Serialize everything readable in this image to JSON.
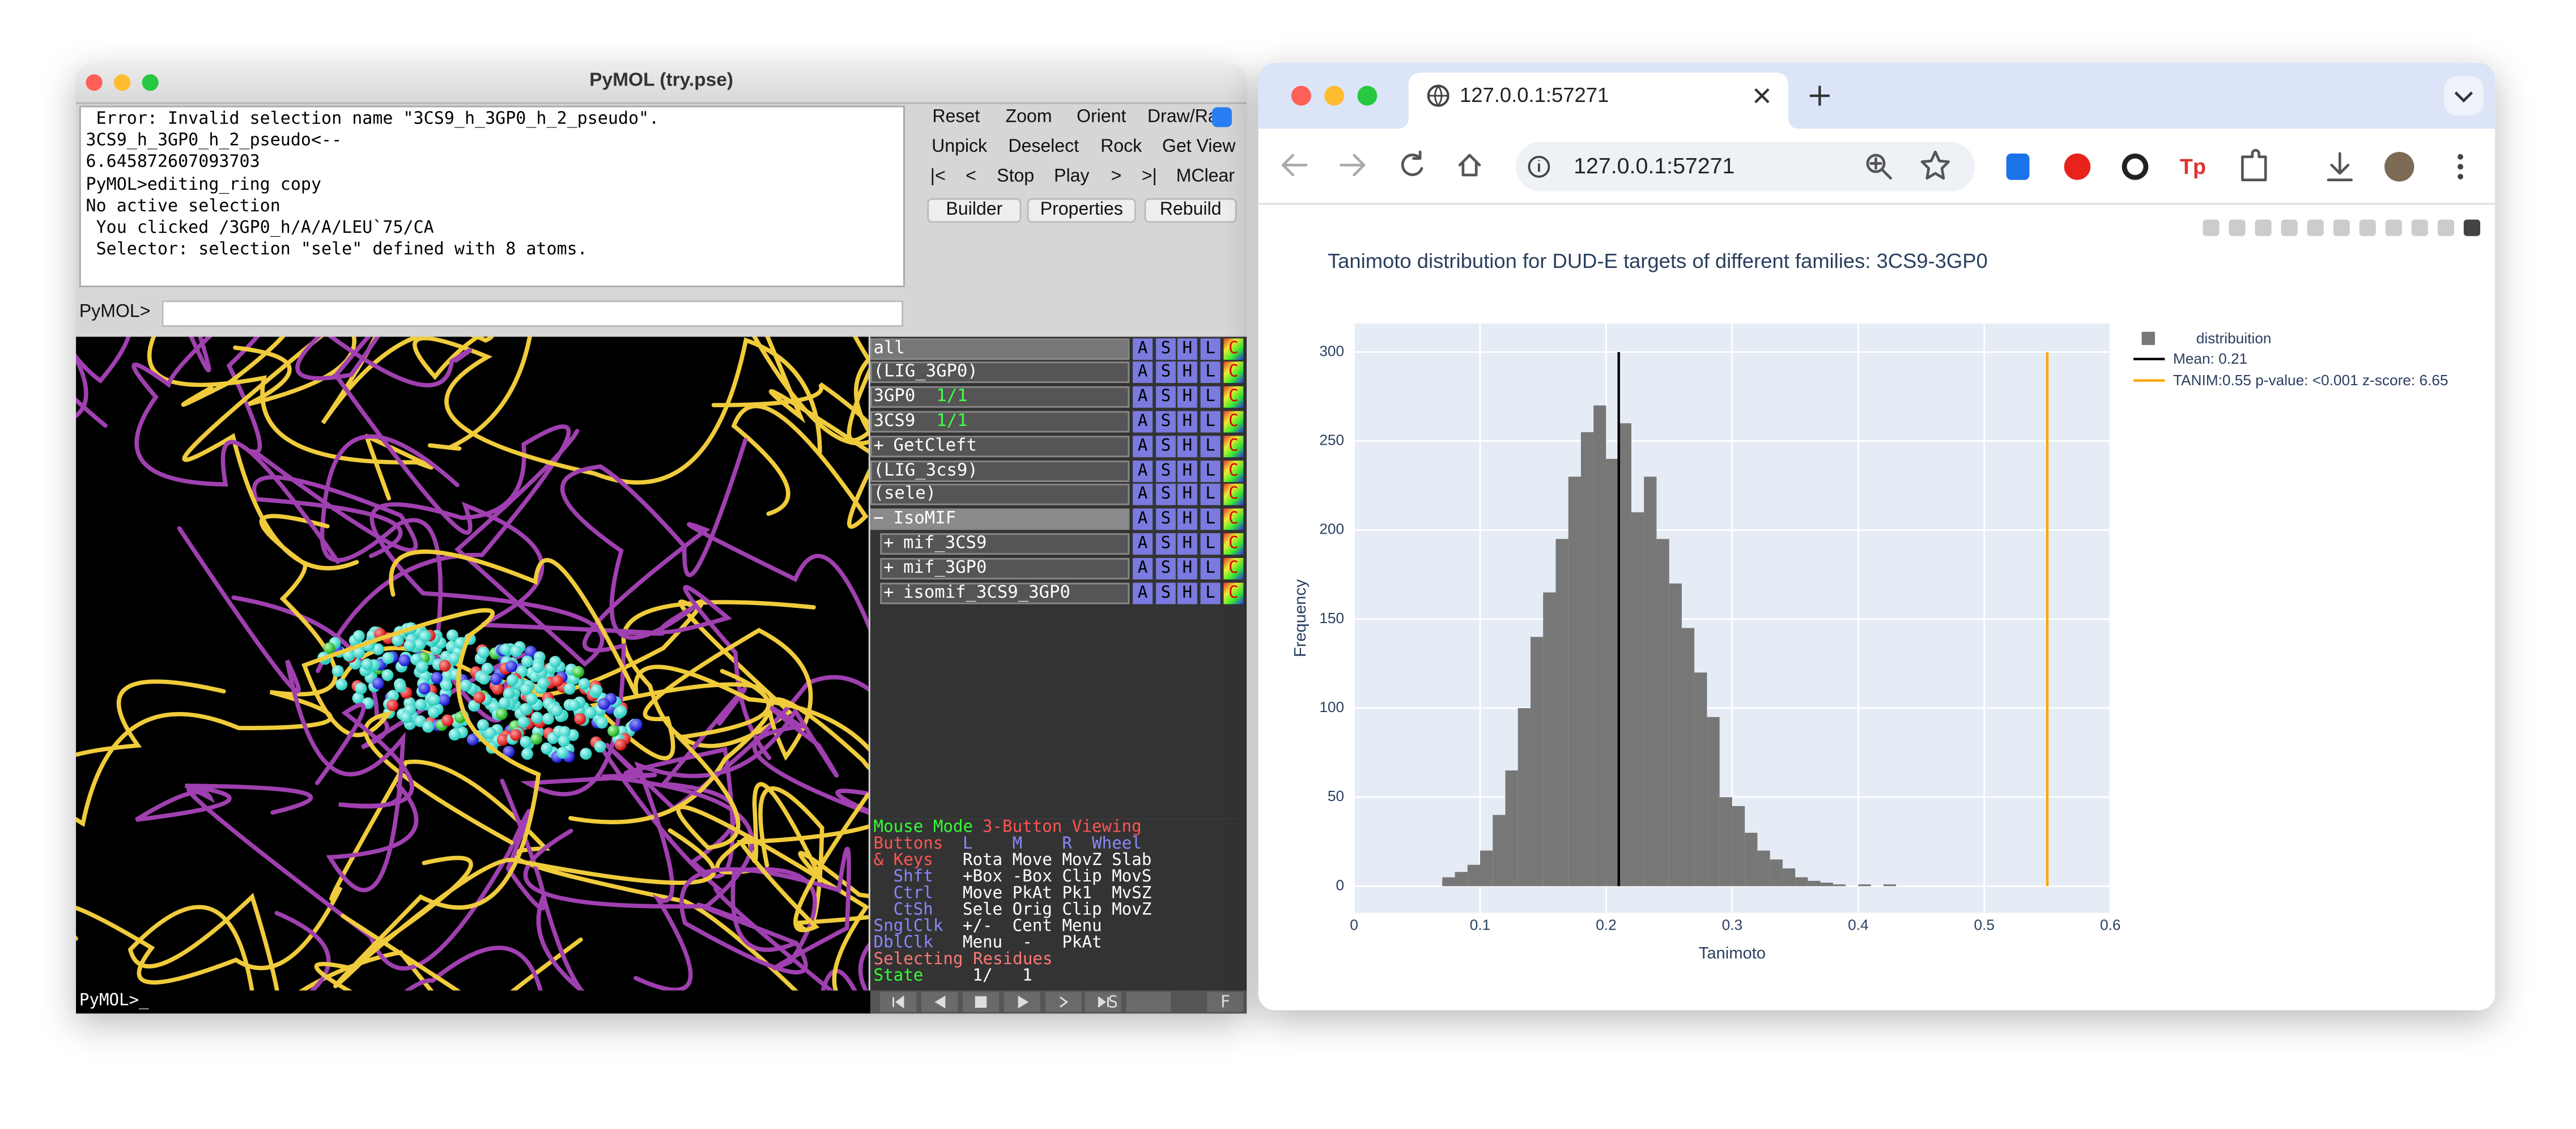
{
  "pymol": {
    "title": "PyMOL (try.pse)",
    "output": [
      " Error: Invalid selection name \"3CS9_h_3GP0_h_2_pseudo\".",
      "3CS9_h_3GP0_h_2_pseudo<--",
      "6.645872607093703",
      "PyMOL>editing_ring copy",
      "No active selection",
      " You clicked /3GP0_h/A/A/LEU`75/CA",
      " Selector: selection \"sele\" defined with 8 atoms."
    ],
    "buttons": [
      [
        "Reset",
        "Zoom",
        "Orient",
        "Draw/Ray"
      ],
      [
        "Unpick",
        "Deselect",
        "Rock",
        "Get View"
      ],
      [
        "|<",
        "<",
        "Stop",
        "Play",
        ">",
        ">|",
        "MClear"
      ],
      [
        "Builder",
        "Properties",
        "Rebuild"
      ]
    ],
    "prompt": "PyMOL>",
    "object_buttons": [
      "A",
      "S",
      "H",
      "L",
      "C"
    ],
    "objects": [
      {
        "name": "all"
      },
      {
        "name": "(LIG_3GP0)"
      },
      {
        "name": "3GP0",
        "state": "1/1"
      },
      {
        "name": "3CS9",
        "state": "1/1"
      },
      {
        "expander": "+",
        "name": "GetCleft"
      },
      {
        "name": "(LIG_3cs9)"
      },
      {
        "name": "(sele)"
      },
      {
        "expander": "−",
        "name": "IsoMIF",
        "children": [
          {
            "expander": "+",
            "name": "mif_3CS9"
          },
          {
            "expander": "+",
            "name": "mif_3GP0"
          },
          {
            "expander": "+",
            "name": "isomif_3CS9_3GP0"
          }
        ]
      }
    ],
    "mouse_mode": {
      "title": [
        "Mouse Mode",
        "3-Button Viewing"
      ],
      "rows": [
        [
          "Buttons",
          "L    M    R  Wheel"
        ],
        [
          "& Keys",
          "Rota Move MovZ Slab"
        ],
        [
          "Shft",
          "+Box -Box Clip MovS"
        ],
        [
          "Ctrl",
          "Move PkAt Pk1  MvSZ"
        ],
        [
          "CtSh",
          "Sele Orig Clip MovZ"
        ],
        [
          "SnglClk",
          "+/-  Cent Menu"
        ],
        [
          "DblClk",
          "Menu  -   PkAt"
        ]
      ],
      "selecting": "Selecting Residues",
      "state": [
        "State",
        "1/   1"
      ]
    },
    "bottom_prompt": "PyMOL>_",
    "playback_labels": [
      "S",
      "F"
    ]
  },
  "browser": {
    "tab": "127.0.0.1:57271",
    "url": "127.0.0.1:57271",
    "extension_label": "Tp",
    "chart_data": {
      "type": "histogram",
      "title": "Tanimoto distribution for DUD-E targets of different families: 3CS9-3GP0",
      "x_label": "Tanimoto",
      "y_label": "Frequency",
      "name": "distribuition",
      "color": "#777777",
      "bins": [
        0.07,
        0.08,
        0.09,
        0.1,
        0.11,
        0.12,
        0.13,
        0.14,
        0.15,
        0.16,
        0.17,
        0.18,
        0.19,
        0.2,
        0.21,
        0.22,
        0.23,
        0.24,
        0.25,
        0.26,
        0.27,
        0.28,
        0.29,
        0.3,
        0.31,
        0.32,
        0.33,
        0.34,
        0.35,
        0.36,
        0.37,
        0.38,
        0.39,
        0.4,
        0.41,
        0.42,
        0.43,
        0.44
      ],
      "values": [
        5,
        8,
        12,
        20,
        40,
        65,
        100,
        140,
        165,
        195,
        230,
        255,
        270,
        240,
        260,
        210,
        230,
        195,
        170,
        145,
        120,
        95,
        50,
        45,
        30,
        20,
        15,
        10,
        5,
        3,
        2,
        1,
        0,
        1,
        0,
        1,
        0
      ],
      "lines": [
        {
          "name": "Mean: 0.21",
          "value": 0.21,
          "y": [
            0,
            300
          ],
          "color": "#000000"
        },
        {
          "name": "TANIM:0.55   p-value: <0.001  z-score: 6.65",
          "value": 0.55,
          "y": [
            0,
            300
          ],
          "color": "#ffa500"
        }
      ],
      "xlim": [
        0,
        0.6
      ],
      "ylim": [
        -15,
        316
      ],
      "xticks": [
        0,
        0.1,
        0.2,
        0.3,
        0.4,
        0.5,
        0.6
      ],
      "yticks": [
        0,
        50,
        100,
        150,
        200,
        250,
        300
      ],
      "grid": true,
      "legend": "outside-top-right"
    }
  }
}
